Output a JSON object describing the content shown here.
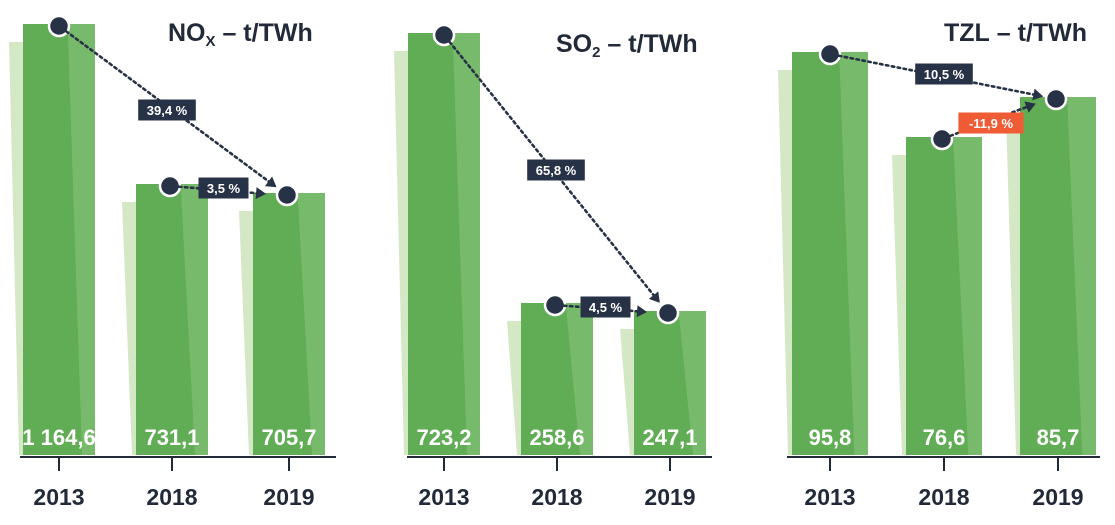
{
  "colors": {
    "bar": "#61ad55",
    "bar_shade": "#8dc47e",
    "bar_ghost": "#d5e8c6",
    "navy": "#283247",
    "negative": "#ee5b34",
    "value_text": "#ffffff",
    "axis_text": "#222a3a"
  },
  "chart_data": [
    {
      "type": "bar",
      "title_main": "NO",
      "title_sub": "X",
      "title_rest": " – t/TWh",
      "categories": [
        "2013",
        "2018",
        "2019"
      ],
      "values": [
        1164.6,
        731.1,
        705.7
      ],
      "value_labels": [
        "1 164,6",
        "731,1",
        "705,7"
      ],
      "changes": [
        {
          "from": "2013",
          "to": "2019",
          "label": "39,4 %",
          "negative": false
        },
        {
          "from": "2018",
          "to": "2019",
          "label": "3,5 %",
          "negative": false
        }
      ]
    },
    {
      "type": "bar",
      "title_main": "SO",
      "title_sub": "2",
      "title_rest": " – t/TWh",
      "categories": [
        "2013",
        "2018",
        "2019"
      ],
      "values": [
        723.2,
        258.6,
        247.1
      ],
      "value_labels": [
        "723,2",
        "258,6",
        "247,1"
      ],
      "changes": [
        {
          "from": "2013",
          "to": "2019",
          "label": "65,8 %",
          "negative": false
        },
        {
          "from": "2018",
          "to": "2019",
          "label": "4,5 %",
          "negative": false
        }
      ]
    },
    {
      "type": "bar",
      "title_main": "TZL",
      "title_sub": "",
      "title_rest": " – t/TWh",
      "categories": [
        "2013",
        "2018",
        "2019"
      ],
      "values": [
        95.8,
        76.6,
        85.7
      ],
      "value_labels": [
        "95,8",
        "76,6",
        "85,7"
      ],
      "changes": [
        {
          "from": "2013",
          "to": "2019",
          "label": "10,5 %",
          "negative": false
        },
        {
          "from": "2018",
          "to": "2019",
          "label": "-11,9 %",
          "negative": true
        }
      ]
    }
  ]
}
